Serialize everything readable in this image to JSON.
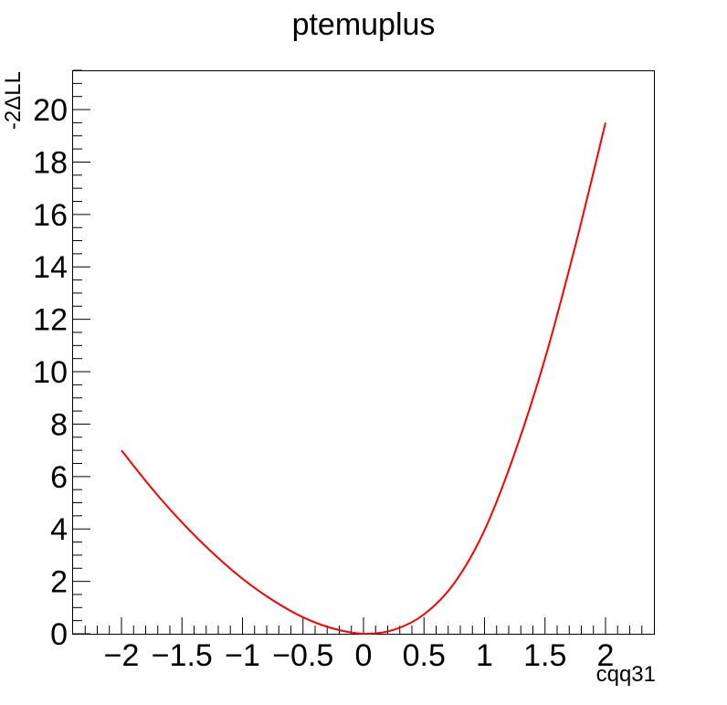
{
  "chart_data": {
    "type": "line",
    "title": "ptemuplus",
    "xlabel": "cqq31",
    "ylabel": "-2ΔLL",
    "xlim": [
      -2.4,
      2.4
    ],
    "ylim": [
      0,
      21.5
    ],
    "grid": false,
    "x_ticks": [
      -2,
      -1.5,
      -1,
      -0.5,
      0,
      0.5,
      1,
      1.5,
      2
    ],
    "x_tick_labels": [
      "−2",
      "−1.5",
      "−1",
      "−0.5",
      "0",
      "0.5",
      "1",
      "1.5",
      "2"
    ],
    "y_ticks": [
      0,
      2,
      4,
      6,
      8,
      10,
      12,
      14,
      16,
      18,
      20
    ],
    "y_tick_labels": [
      "0",
      "2",
      "4",
      "6",
      "8",
      "10",
      "12",
      "14",
      "16",
      "18",
      "20"
    ],
    "series": [
      {
        "color": "#ff0000",
        "x": [
          -2.0,
          -1.75,
          -1.5,
          -1.25,
          -1.0,
          -0.75,
          -0.5,
          -0.25,
          0.0,
          0.25,
          0.5,
          0.75,
          1.0,
          1.25,
          1.5,
          1.75,
          2.0
        ],
        "y": [
          7.0,
          5.55,
          4.25,
          3.1,
          2.1,
          1.28,
          0.63,
          0.2,
          0.0,
          0.15,
          0.74,
          1.93,
          3.95,
          6.9,
          10.5,
          14.8,
          19.5
        ]
      }
    ]
  }
}
